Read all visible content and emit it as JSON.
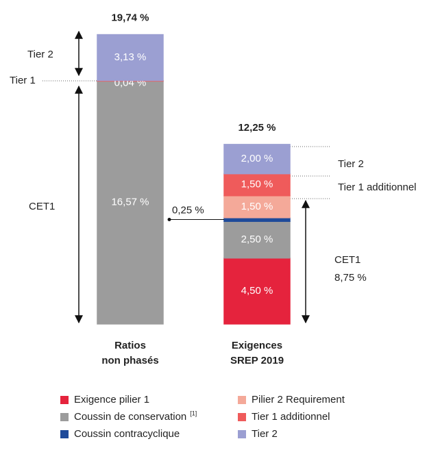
{
  "chart_data": {
    "type": "stacked-bar",
    "bars": [
      {
        "label_lines": [
          "Ratios",
          "non phasés"
        ],
        "total": 19.74,
        "total_label": "19,74 %",
        "segments": [
          {
            "value": 16.57,
            "value_label": "16,57 %",
            "color": "#9c9c9c"
          },
          {
            "value": 0.04,
            "value_label": "0,04 %",
            "color": "#ef5b5b"
          },
          {
            "value": 3.13,
            "value_label": "3,13 %",
            "color": "#9b9fd2"
          }
        ]
      },
      {
        "label_lines": [
          "Exigences",
          "SREP 2019"
        ],
        "total": 12.25,
        "total_label": "12,25 %",
        "segments": [
          {
            "value": 4.5,
            "value_label": "4,50 %",
            "color": "#e5233d"
          },
          {
            "value": 2.5,
            "value_label": "2,50 %",
            "color": "#9c9c9c"
          },
          {
            "value": 0.25,
            "value_label": "0,25 %",
            "color": "#1e4a9a",
            "label_outside": true
          },
          {
            "value": 1.5,
            "value_label": "1,50 %",
            "color": "#f4a999"
          },
          {
            "value": 1.5,
            "value_label": "1,50 %",
            "color": "#ef5b5b"
          },
          {
            "value": 2.0,
            "value_label": "2,00 %",
            "color": "#9b9fd2"
          }
        ]
      }
    ],
    "annotations": {
      "left": [
        "Tier 2",
        "Tier 1",
        "CET1"
      ],
      "right": [
        "Tier 2",
        "Tier 1 additionnel",
        "CET1",
        "8,75 %"
      ]
    },
    "legend": [
      {
        "name": "Exigence pilier 1",
        "color": "#e5233d"
      },
      {
        "name": "Pilier 2 Requirement",
        "color": "#f4a999"
      },
      {
        "name": "Coussin de conservation",
        "color": "#9c9c9c",
        "footnote": "[1]"
      },
      {
        "name": "Tier 1 additionnel",
        "color": "#ef5b5b"
      },
      {
        "name": "Coussin contracyclique",
        "color": "#1e4a9a"
      },
      {
        "name": "Tier 2",
        "color": "#9b9fd2"
      }
    ]
  }
}
